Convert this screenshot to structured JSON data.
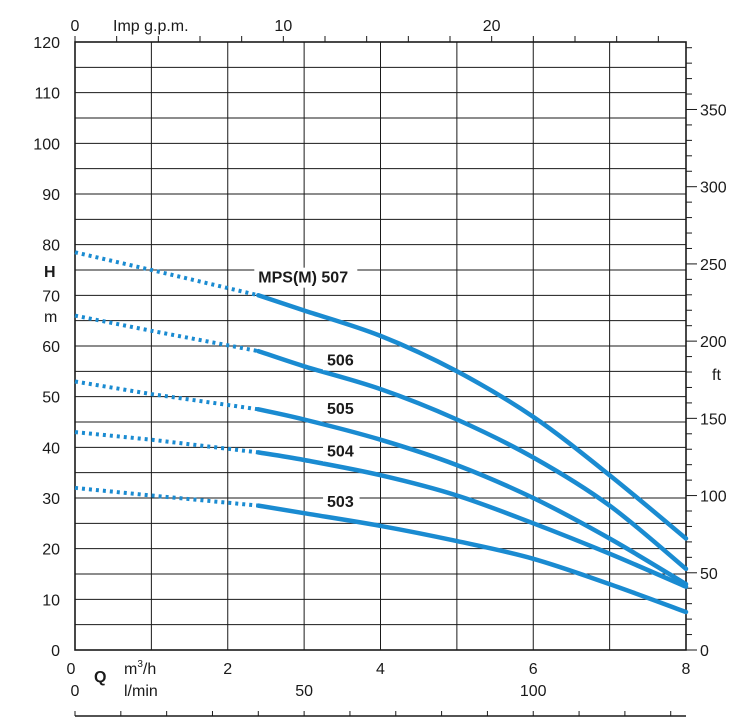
{
  "chart_data": {
    "type": "line",
    "x_axis": {
      "label": "Q",
      "unit": "m³/h",
      "unit_prefix": "m",
      "unit_sup": "3",
      "unit_suffix": "/h",
      "range": [
        0,
        8
      ],
      "ticks": [
        0,
        2,
        4,
        6,
        8
      ]
    },
    "x_axis_top": {
      "unit": "Imp g.p.m.",
      "ticks": [
        0,
        10,
        20
      ],
      "per_x_unit": 3.666
    },
    "x_axis_lmin": {
      "unit": "l/min",
      "ticks": [
        0,
        50,
        100
      ],
      "per_x_unit": 16.667
    },
    "y_axis": {
      "label": "H",
      "unit": "m",
      "range": [
        0,
        120
      ],
      "ticks": [
        0,
        10,
        20,
        30,
        40,
        50,
        60,
        70,
        80,
        90,
        100,
        110,
        120
      ]
    },
    "y_axis_right": {
      "unit": "ft",
      "ticks": [
        0,
        50,
        100,
        150,
        200,
        250,
        300,
        350
      ],
      "per_y_unit": 3.2808
    },
    "grid": true,
    "series": [
      {
        "name": "MPS(M) 507",
        "color": "#1a8bd1",
        "dotted": [
          [
            0,
            78.5
          ],
          [
            1,
            75
          ],
          [
            2.4,
            70
          ]
        ],
        "solid": [
          [
            2.4,
            70
          ],
          [
            3,
            67
          ],
          [
            4,
            62
          ],
          [
            5,
            55
          ],
          [
            6,
            46
          ],
          [
            7,
            34.5
          ],
          [
            8,
            22
          ]
        ]
      },
      {
        "name": "506",
        "color": "#1a8bd1",
        "dotted": [
          [
            0,
            66
          ],
          [
            1,
            63
          ],
          [
            2.4,
            59
          ]
        ],
        "solid": [
          [
            2.4,
            59
          ],
          [
            3,
            56
          ],
          [
            4,
            51.5
          ],
          [
            5,
            45.5
          ],
          [
            6,
            38
          ],
          [
            7,
            28.5
          ],
          [
            8,
            16
          ]
        ]
      },
      {
        "name": "505",
        "color": "#1a8bd1",
        "dotted": [
          [
            0,
            53
          ],
          [
            1,
            50.5
          ],
          [
            2.4,
            47.5
          ]
        ],
        "solid": [
          [
            2.4,
            47.5
          ],
          [
            3,
            45.5
          ],
          [
            4,
            41.5
          ],
          [
            5,
            36.5
          ],
          [
            6,
            30
          ],
          [
            7,
            22
          ],
          [
            8,
            13
          ]
        ]
      },
      {
        "name": "504",
        "color": "#1a8bd1",
        "dotted": [
          [
            0,
            43
          ],
          [
            1,
            41.5
          ],
          [
            2.4,
            39
          ]
        ],
        "solid": [
          [
            2.4,
            39
          ],
          [
            3,
            37.5
          ],
          [
            4,
            34.5
          ],
          [
            5,
            30.5
          ],
          [
            6,
            25
          ],
          [
            7,
            19
          ],
          [
            8,
            12.5
          ]
        ]
      },
      {
        "name": "503",
        "color": "#1a8bd1",
        "dotted": [
          [
            0,
            32
          ],
          [
            1,
            30.5
          ],
          [
            2.4,
            28.5
          ]
        ],
        "solid": [
          [
            2.4,
            28.5
          ],
          [
            3,
            27
          ],
          [
            4,
            24.5
          ],
          [
            5,
            21.5
          ],
          [
            6,
            18
          ],
          [
            7,
            13
          ],
          [
            8,
            7.5
          ]
        ]
      }
    ]
  }
}
